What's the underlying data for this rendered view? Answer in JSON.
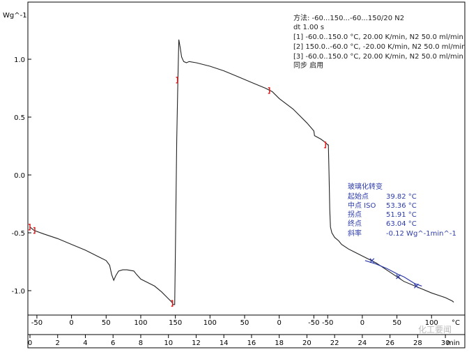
{
  "chart_data": {
    "type": "line",
    "ylabel": "Wg^-1",
    "ylim": [
      -1.2,
      1.3
    ],
    "xlim": [
      0,
      31
    ],
    "x_unit": "min",
    "temp_unit": "°C",
    "y_ticks": [
      "1.0",
      "0.5",
      "0.0",
      "-0.5",
      "-1.0"
    ],
    "y_tick_values": [
      1.0,
      0.5,
      0.0,
      -0.5,
      -1.0
    ],
    "x_ticks": [
      "0",
      "2",
      "4",
      "6",
      "8",
      "10",
      "12",
      "14",
      "16",
      "18",
      "20",
      "22",
      "24",
      "26",
      "28",
      "30"
    ],
    "x_tick_values": [
      0,
      2,
      4,
      6,
      8,
      10,
      12,
      14,
      16,
      18,
      20,
      22,
      24,
      26,
      28,
      30
    ],
    "temp_ticks": [
      "-50",
      "0",
      "50",
      "100",
      "150",
      "100",
      "50",
      "0",
      "-50",
      "-50",
      "0",
      "50",
      "100"
    ],
    "temp_tick_times": [
      0.5,
      3,
      5.5,
      8,
      10.5,
      13,
      15.5,
      18,
      20.5,
      21.5,
      24,
      26.5,
      29
    ],
    "series": [
      {
        "x": [
          0,
          0.3,
          1.0,
          2.0,
          3.0,
          4.0,
          5.0,
          5.5,
          5.75,
          5.9,
          6.05,
          6.2,
          6.4,
          6.7,
          7.0,
          7.5,
          7.7,
          8.0,
          8.5,
          9.0,
          9.5,
          10.0,
          10.25,
          10.35,
          10.42,
          10.45,
          10.5,
          10.55,
          10.6,
          10.68,
          10.75,
          10.85,
          10.95,
          11.1,
          11.3,
          11.5,
          12.0,
          13.0,
          14.0,
          15.0,
          16.0,
          17.0,
          17.5,
          18.0,
          19.0,
          20.0,
          20.5,
          20.55,
          21.0,
          21.35,
          21.5,
          21.55,
          21.6,
          21.65,
          21.7,
          21.8,
          21.9,
          22.0,
          22.3,
          22.5,
          23.0,
          24.0,
          25.0,
          26.0,
          27.0,
          28.0,
          29.0,
          30.0,
          30.5,
          30.6
        ],
        "y": [
          -0.45,
          -0.48,
          -0.51,
          -0.55,
          -0.6,
          -0.65,
          -0.71,
          -0.74,
          -0.78,
          -0.86,
          -0.91,
          -0.87,
          -0.83,
          -0.82,
          -0.82,
          -0.83,
          -0.86,
          -0.9,
          -0.93,
          -0.96,
          -1.01,
          -1.07,
          -1.1,
          -1.12,
          -1.12,
          -1.12,
          -0.7,
          -0.2,
          0.3,
          0.8,
          1.17,
          1.1,
          1.02,
          0.98,
          0.97,
          0.98,
          0.97,
          0.94,
          0.9,
          0.85,
          0.8,
          0.75,
          0.72,
          0.66,
          0.57,
          0.45,
          0.38,
          0.34,
          0.31,
          0.28,
          0.26,
          0.26,
          0.0,
          -0.3,
          -0.45,
          -0.5,
          -0.52,
          -0.54,
          -0.57,
          -0.6,
          -0.64,
          -0.7,
          -0.76,
          -0.84,
          -0.92,
          -0.97,
          -1.02,
          -1.06,
          -1.09,
          -1.1
        ]
      }
    ],
    "step_markers": [
      {
        "x": 0.0,
        "y": -0.45
      },
      {
        "x": 0.35,
        "y": -0.48
      },
      {
        "x": 10.3,
        "y": -1.11
      },
      {
        "x": 10.65,
        "y": 0.82
      },
      {
        "x": 17.3,
        "y": 0.73
      },
      {
        "x": 21.35,
        "y": 0.26
      }
    ],
    "glass_fit": {
      "x": [
        24.2,
        25.0,
        25.8,
        26.6,
        27.0,
        27.4,
        27.8,
        28.3
      ],
      "y": [
        -0.74,
        -0.77,
        -0.81,
        -0.86,
        -0.88,
        -0.91,
        -0.94,
        -0.96
      ]
    },
    "glass_markers": [
      {
        "x": 24.7,
        "y": -0.74
      },
      {
        "x": 26.6,
        "y": -0.88
      },
      {
        "x": 27.9,
        "y": -0.96
      }
    ],
    "method_text": [
      "方法: -60...150...-60...150/20 N2",
      "dt 1.00 s",
      "[1] -60.0..150.0 °C, 20.00 K/min,  N2 50.0 ml/min",
      "[2] 150.0..-60.0 °C, -20.00 K/min, N2 50.0 ml/min",
      "[3] -60.0..150.0 °C, 20.00 K/min,  N2 50.0 ml/min",
      "同步 启用"
    ],
    "glass_transition": {
      "title": "玻璃化转变",
      "rows": [
        {
          "label": "起始点",
          "value": "39.82 °C"
        },
        {
          "label": "中点 ISO",
          "value": "53.36 °C"
        },
        {
          "label": "拐点",
          "value": "51.91 °C"
        },
        {
          "label": "终点",
          "value": "63.04 °C"
        },
        {
          "label": "斜率",
          "value": "-0.12 Wg^-1min^-1"
        }
      ]
    },
    "watermark": "化工要闻"
  },
  "colors": {
    "curve": "#222222",
    "marker": "#e31b1b",
    "fit": "#2b3aa8",
    "axis": "#000000"
  }
}
